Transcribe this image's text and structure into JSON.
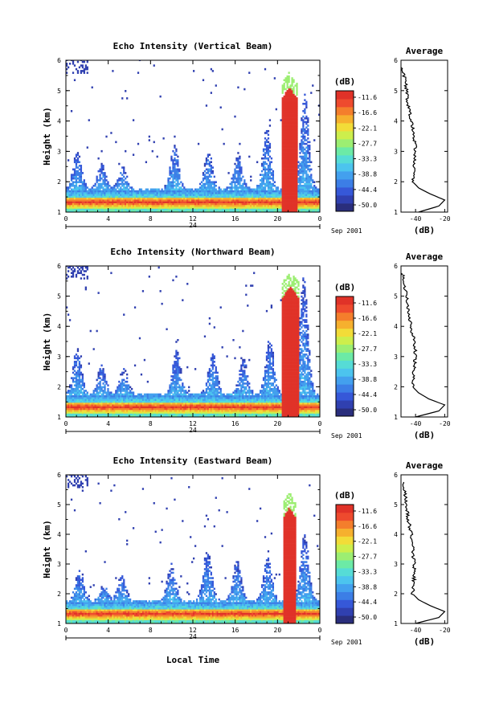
{
  "colors": {
    "scale": [
      "#2a2e7c",
      "#3040b0",
      "#3658d8",
      "#3c7ee6",
      "#43a0ee",
      "#4cc4ee",
      "#56dcd6",
      "#6ceaa6",
      "#9cee72",
      "#cdee4c",
      "#f2dc38",
      "#f6b02e",
      "#f47e2c",
      "#ee4a2e",
      "#e03228"
    ],
    "profile": "#000000"
  },
  "date_label": "Sep 2001",
  "xlabel_bottom": "Local Time",
  "profile": {
    "title": "Average",
    "xlabel": "(dB)",
    "xticks": [
      "-40",
      "-20"
    ],
    "xlim": [
      -50,
      -18
    ]
  },
  "colorbar": {
    "title": "(dB)",
    "ticks": [
      "-11.6",
      "-16.6",
      "-22.1",
      "-27.7",
      "-33.3",
      "-38.8",
      "-44.4",
      "-50.0"
    ]
  },
  "chart_data": [
    {
      "type": "heatmap",
      "title": "Echo Intensity (Vertical Beam)",
      "ylabel": "Height (km)",
      "x_ticks": [
        "0",
        "4",
        "8",
        "12",
        "16",
        "20",
        "0"
      ],
      "day_tick": "24",
      "y_ticks": [
        "1",
        "2",
        "3",
        "4",
        "5",
        "6"
      ],
      "xlim": [
        0,
        24
      ],
      "ylim": [
        1,
        6
      ],
      "zlim": [
        -50.0,
        -11.6
      ],
      "rain_event": {
        "x_start": 20.3,
        "x_end": 21.8,
        "height_top": 5.1
      },
      "cloud_columns": [
        {
          "x": 1.0,
          "top": 3.0
        },
        {
          "x": 3.3,
          "top": 2.6
        },
        {
          "x": 5.3,
          "top": 2.5
        },
        {
          "x": 10.2,
          "top": 3.2
        },
        {
          "x": 13.4,
          "top": 3.0
        },
        {
          "x": 16.2,
          "top": 2.9
        },
        {
          "x": 18.9,
          "top": 3.8
        },
        {
          "x": 22.5,
          "top": 4.9
        }
      ],
      "profile": {
        "height": [
          1.0,
          1.2,
          1.4,
          1.6,
          1.8,
          2.0,
          2.5,
          3.0,
          3.5,
          4.0,
          4.5,
          5.0,
          5.5,
          5.8
        ],
        "db": [
          -38,
          -24,
          -20,
          -30,
          -38,
          -42,
          -41,
          -40,
          -41,
          -43,
          -45,
          -46,
          -48,
          -49
        ]
      }
    },
    {
      "type": "heatmap",
      "title": "Echo Intensity (Northward Beam)",
      "ylabel": "Height (km)",
      "x_ticks": [
        "0",
        "4",
        "8",
        "12",
        "16",
        "20",
        "0"
      ],
      "day_tick": "24",
      "y_ticks": [
        "1",
        "2",
        "3",
        "4",
        "5",
        "6"
      ],
      "xlim": [
        0,
        24
      ],
      "ylim": [
        1,
        6
      ],
      "zlim": [
        -50.0,
        -11.6
      ],
      "rain_event": {
        "x_start": 20.3,
        "x_end": 22.0,
        "height_top": 5.3
      },
      "cloud_columns": [
        {
          "x": 1.0,
          "top": 3.3
        },
        {
          "x": 3.3,
          "top": 2.7
        },
        {
          "x": 5.4,
          "top": 2.6
        },
        {
          "x": 10.4,
          "top": 3.2
        },
        {
          "x": 13.8,
          "top": 3.1
        },
        {
          "x": 16.7,
          "top": 2.9
        },
        {
          "x": 19.2,
          "top": 3.6
        },
        {
          "x": 22.4,
          "top": 5.6
        }
      ],
      "profile": {
        "height": [
          1.0,
          1.2,
          1.4,
          1.6,
          1.8,
          2.0,
          2.5,
          3.0,
          3.5,
          4.0,
          4.5,
          5.0,
          5.5,
          5.8
        ],
        "db": [
          -40,
          -24,
          -20,
          -31,
          -38,
          -42,
          -41,
          -40,
          -41,
          -43,
          -45,
          -46,
          -48,
          -49
        ]
      }
    },
    {
      "type": "heatmap",
      "title": "Echo Intensity (Eastward Beam)",
      "ylabel": "Height (km)",
      "x_ticks": [
        "0",
        "4",
        "8",
        "12",
        "16",
        "20",
        "0"
      ],
      "day_tick": "24",
      "y_ticks": [
        "1",
        "2",
        "3",
        "4",
        "5",
        "6"
      ],
      "xlim": [
        0,
        24
      ],
      "ylim": [
        1,
        6
      ],
      "zlim": [
        -50.0,
        -11.6
      ],
      "rain_event": {
        "x_start": 20.4,
        "x_end": 21.7,
        "height_top": 4.9
      },
      "cloud_columns": [
        {
          "x": 1.2,
          "top": 2.8
        },
        {
          "x": 3.5,
          "top": 2.3
        },
        {
          "x": 5.2,
          "top": 2.6
        },
        {
          "x": 9.9,
          "top": 3.0
        },
        {
          "x": 13.3,
          "top": 3.5
        },
        {
          "x": 16.1,
          "top": 3.1
        },
        {
          "x": 19.0,
          "top": 3.2
        },
        {
          "x": 22.5,
          "top": 4.0
        }
      ],
      "profile": {
        "height": [
          1.0,
          1.2,
          1.4,
          1.6,
          1.8,
          2.0,
          2.5,
          3.0,
          3.5,
          4.0,
          4.5,
          5.0,
          5.5,
          5.8
        ],
        "db": [
          -40,
          -24,
          -20,
          -30,
          -38,
          -42,
          -41,
          -41,
          -42,
          -43,
          -45,
          -46,
          -48,
          -49
        ]
      }
    }
  ]
}
